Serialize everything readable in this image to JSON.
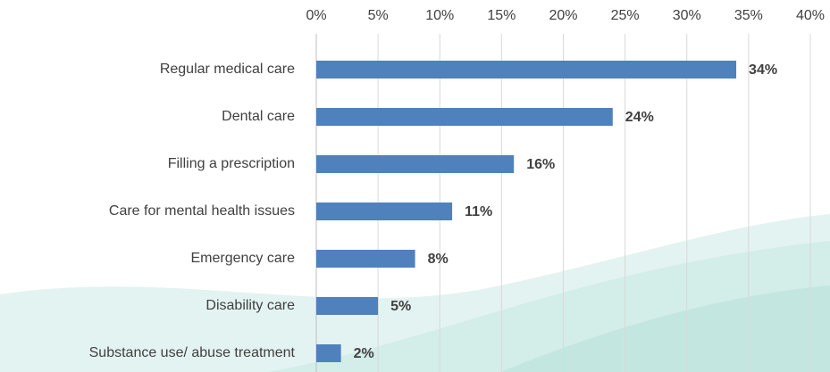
{
  "chart_data": {
    "type": "bar",
    "orientation": "horizontal",
    "categories": [
      "Regular medical care",
      "Dental care",
      "Filling a prescription",
      "Care for mental health issues",
      "Emergency care",
      "Disability care",
      "Substance use/ abuse treatment"
    ],
    "values": [
      34,
      24,
      16,
      11,
      8,
      5,
      2
    ],
    "value_labels": [
      "34%",
      "24%",
      "16%",
      "11%",
      "8%",
      "5%",
      "2%"
    ],
    "color": "#4f81bd",
    "xlim": [
      0,
      40
    ],
    "xticks": [
      {
        "value": 0,
        "label": "0%"
      },
      {
        "value": 5,
        "label": "5%"
      },
      {
        "value": 10,
        "label": "10%"
      },
      {
        "value": 15,
        "label": "15%"
      },
      {
        "value": 20,
        "label": "20%"
      },
      {
        "value": 25,
        "label": "25%"
      },
      {
        "value": 30,
        "label": "30%"
      },
      {
        "value": 35,
        "label": "35%"
      },
      {
        "value": 40,
        "label": "40%"
      }
    ],
    "grid": true
  }
}
